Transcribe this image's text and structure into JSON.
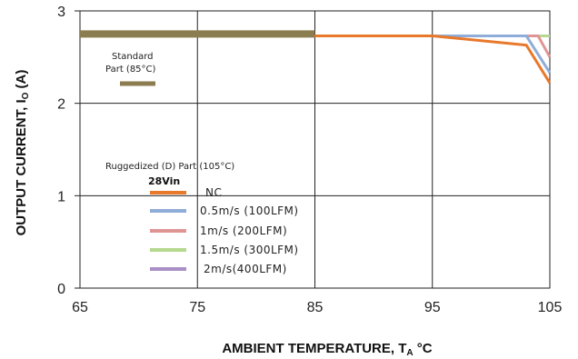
{
  "chart_data": {
    "type": "line",
    "xlabel_main": "AMBIENT TEMPERATURE, T",
    "xlabel_sub": "A",
    "xlabel_unit": " °C",
    "ylabel_main": "OUTPUT CURRENT, I",
    "ylabel_sub": "O",
    "ylabel_unit": " (A)",
    "xlim": [
      65,
      105
    ],
    "ylim": [
      0,
      3
    ],
    "x_ticks": [
      "65",
      "75",
      "85",
      "95",
      "105"
    ],
    "y_ticks": [
      "0",
      "1",
      "2",
      "3"
    ],
    "grid": true,
    "standard_part_label_1": "Standard",
    "standard_part_label_2": "Part (85°C)",
    "ruggedized_label": "Ruggedized (D) Part (105°C)",
    "vin_label": "28Vin",
    "standard_series": {
      "color": "#8b7d4f",
      "x": [
        65,
        85
      ],
      "y": [
        2.75,
        2.75
      ]
    },
    "series": [
      {
        "name": "NC",
        "color": "#e8782a",
        "x": [
          65,
          95,
          103,
          105
        ],
        "y": [
          2.73,
          2.73,
          2.63,
          2.22
        ]
      },
      {
        "name": "0.5m/s (100LFM)",
        "color": "#8fadd8",
        "x": [
          65,
          103,
          105
        ],
        "y": [
          2.73,
          2.73,
          2.33
        ]
      },
      {
        "name": "1m/s (200LFM)",
        "color": "#e09595",
        "x": [
          65,
          104,
          105
        ],
        "y": [
          2.73,
          2.73,
          2.5
        ]
      },
      {
        "name": "1.5m/s (300LFM)",
        "color": "#b5d88f",
        "x": [
          65,
          105
        ],
        "y": [
          2.73,
          2.73
        ]
      },
      {
        "name": "2m/s(400LFM)",
        "color": "#a98fc4",
        "x": [
          65,
          105
        ],
        "y": [
          2.73,
          2.73
        ]
      }
    ]
  }
}
